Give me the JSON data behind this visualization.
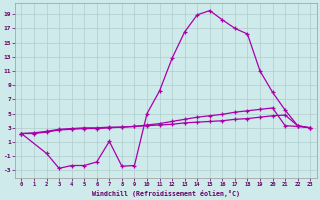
{
  "xlabel": "Windchill (Refroidissement éolien,°C)",
  "bg_color": "#ceeaea",
  "grid_color": "#b0cccc",
  "line_color": "#aa00aa",
  "marker": "+",
  "xlim": [
    -0.5,
    23.5
  ],
  "ylim": [
    -4.0,
    20.5
  ],
  "xticks": [
    0,
    1,
    2,
    3,
    4,
    5,
    6,
    7,
    8,
    9,
    10,
    11,
    12,
    13,
    14,
    15,
    16,
    17,
    18,
    19,
    20,
    21,
    22,
    23
  ],
  "yticks": [
    -3,
    -1,
    1,
    3,
    5,
    7,
    9,
    11,
    13,
    15,
    17,
    19
  ],
  "series1_x": [
    0,
    1,
    2,
    3,
    4,
    5,
    6,
    7,
    8,
    9,
    10,
    11,
    12,
    13,
    14,
    15,
    16,
    17,
    18,
    19,
    20,
    21,
    22,
    23
  ],
  "series1_y": [
    2.2,
    2.3,
    2.5,
    2.8,
    2.9,
    3.0,
    3.0,
    3.1,
    3.1,
    3.2,
    3.3,
    3.4,
    3.5,
    3.7,
    3.8,
    3.9,
    4.0,
    4.2,
    4.3,
    4.5,
    4.7,
    4.8,
    3.3,
    3.0
  ],
  "series2_x": [
    0,
    2,
    3,
    4,
    5,
    6,
    7,
    8,
    9,
    10,
    11,
    12,
    13,
    14,
    15,
    16,
    17,
    18,
    19,
    20,
    21,
    22,
    23
  ],
  "series2_y": [
    2.2,
    -0.6,
    -2.7,
    -2.3,
    -2.3,
    -1.8,
    1.1,
    -2.4,
    -2.3,
    5.0,
    8.2,
    12.8,
    16.5,
    18.9,
    19.5,
    18.2,
    17.0,
    16.2,
    11.0,
    8.0,
    5.5,
    3.3,
    3.0
  ],
  "series3_x": [
    0,
    1,
    2,
    3,
    4,
    5,
    6,
    7,
    8,
    9,
    10,
    11,
    12,
    13,
    14,
    15,
    16,
    17,
    18,
    19,
    20,
    21,
    22,
    23
  ],
  "series3_y": [
    2.2,
    2.2,
    2.4,
    2.7,
    2.8,
    2.9,
    2.9,
    3.0,
    3.1,
    3.2,
    3.4,
    3.6,
    3.9,
    4.2,
    4.5,
    4.7,
    4.9,
    5.2,
    5.4,
    5.6,
    5.8,
    3.3,
    3.2,
    3.0
  ]
}
